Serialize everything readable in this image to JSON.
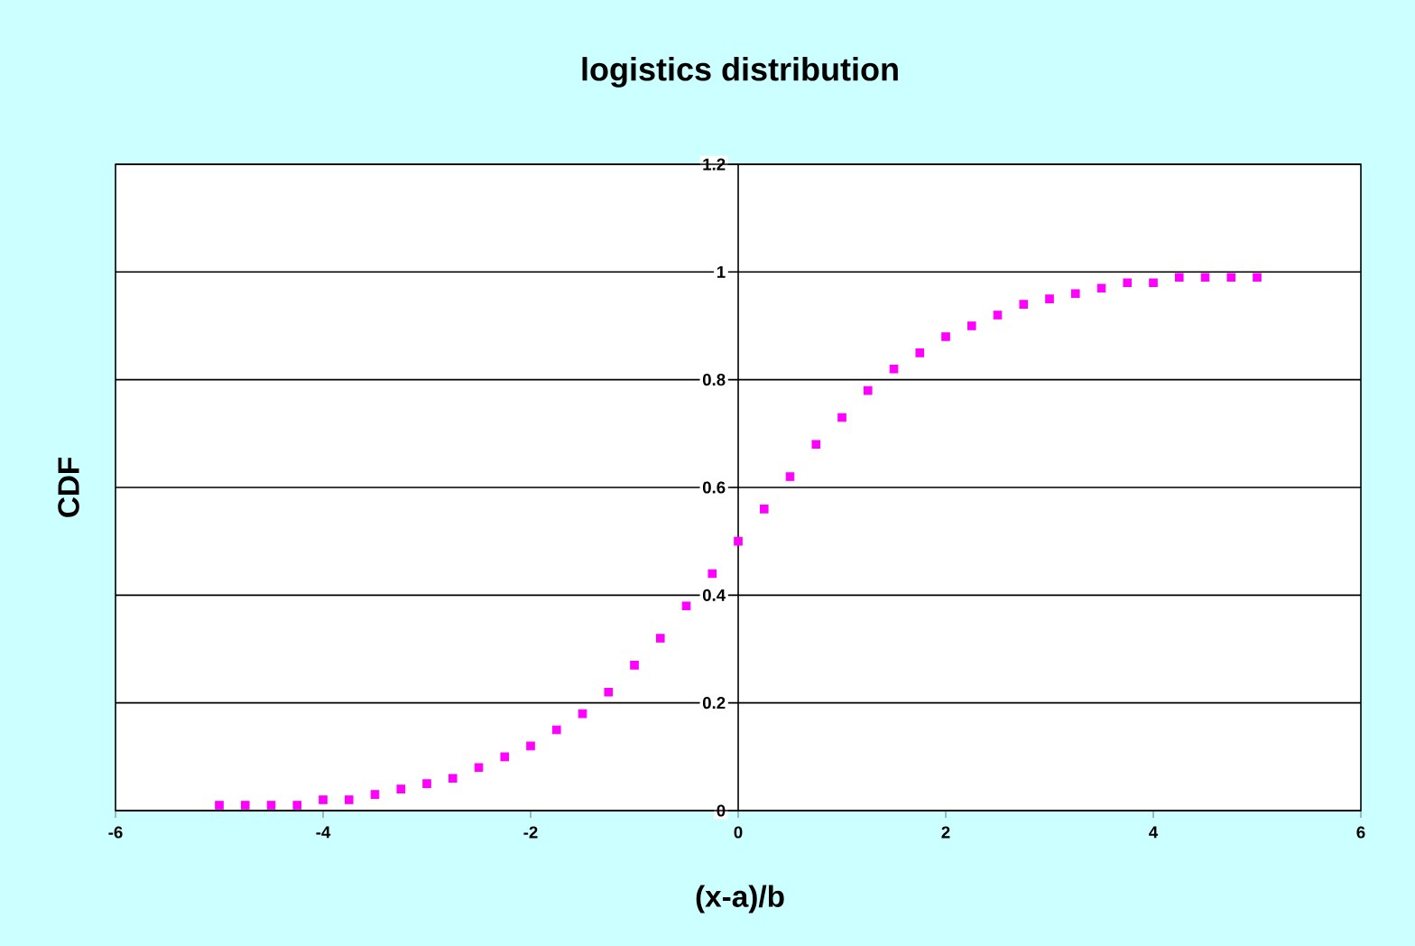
{
  "chart_data": {
    "type": "scatter",
    "title": "logistics distribution",
    "xlabel": "(x-a)/b",
    "ylabel": "CDF",
    "x": [
      -5,
      -4.75,
      -4.5,
      -4.25,
      -4,
      -3.75,
      -3.5,
      -3.25,
      -3,
      -2.75,
      -2.5,
      -2.25,
      -2,
      -1.75,
      -1.5,
      -1.25,
      -1,
      -0.75,
      -0.5,
      -0.25,
      0,
      0.25,
      0.5,
      0.75,
      1,
      1.25,
      1.5,
      1.75,
      2,
      2.25,
      2.5,
      2.75,
      3,
      3.25,
      3.5,
      3.75,
      4,
      4.25,
      4.5,
      4.75,
      5
    ],
    "series": [
      {
        "color": "#ff00ff",
        "values": [
          0.01,
          0.01,
          0.01,
          0.01,
          0.02,
          0.02,
          0.03,
          0.04,
          0.05,
          0.06,
          0.08,
          0.1,
          0.12,
          0.15,
          0.18,
          0.22,
          0.27,
          0.32,
          0.38,
          0.44,
          0.5,
          0.56,
          0.62,
          0.68,
          0.73,
          0.78,
          0.82,
          0.85,
          0.88,
          0.9,
          0.92,
          0.94,
          0.95,
          0.96,
          0.97,
          0.98,
          0.98,
          0.99,
          0.99,
          0.99,
          0.99
        ]
      }
    ],
    "xlim": [
      -6,
      6
    ],
    "ylim": [
      0,
      1.2
    ],
    "xticks": [
      -6,
      -4,
      -2,
      0,
      2,
      4,
      6
    ],
    "yticks": [
      0,
      0.2,
      0.4,
      0.6,
      0.8,
      1,
      1.2
    ],
    "grid": "y",
    "marker": "square"
  }
}
